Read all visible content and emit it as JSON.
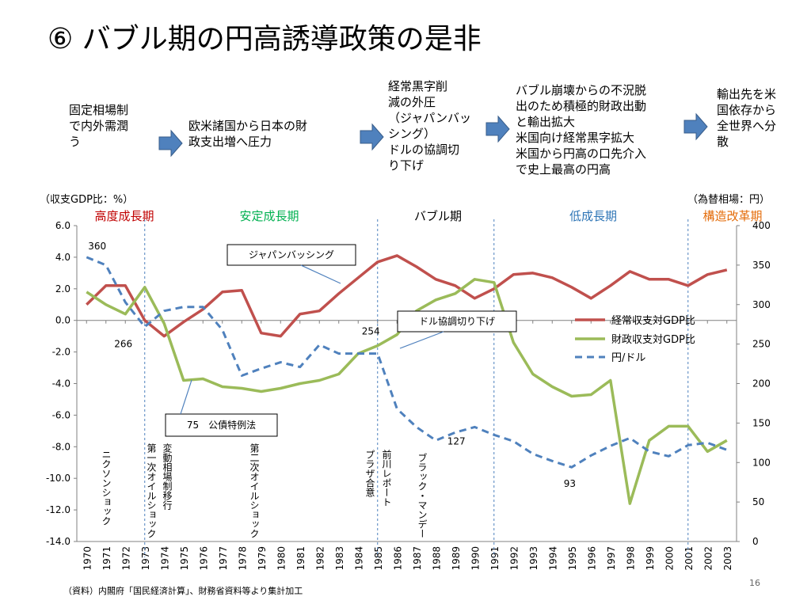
{
  "title": "⑥ バブル期の円高誘導政策の是非",
  "flow": [
    "固定相場制\nで内外需潤\nう",
    "欧米諸国から日本の財\n政支出増へ圧力",
    "経常黒字削\n減の外圧\n（ジャパンバッ\nシング）\nドルの協調切\nり下げ",
    "バブル崩壊からの不況脱\n出のため積極的財政出動\nと輸出拡大\n米国向け経常黒字拡大\n米国から円高の口先介入\nで史上最高の円高",
    "輸出先を米\n国依存から\n全世界へ分\n散"
  ],
  "colors": {
    "current": "#c0504d",
    "fiscal": "#9bbb59",
    "yen": "#4f81bd",
    "era_high": "#c00000",
    "era_stable": "#00b050",
    "era_bubble": "#000000",
    "era_low": "#2e75b6",
    "era_reform": "#e46c0a",
    "arrow": "#4f81bd",
    "arrow_border": "#385d8a",
    "divider": "#4f81bd"
  },
  "chart_data": {
    "type": "line",
    "y_left_label": "（収支GDP比：%）",
    "y_right_label": "（為替相場：円）",
    "y_left_ticks": [
      "6.0",
      "4.0",
      "2.0",
      "0.0",
      "-2.0",
      "-4.0",
      "-6.0",
      "-8.0",
      "-10.0",
      "-12.0",
      "-14.0"
    ],
    "y_right_ticks": [
      "400",
      "350",
      "300",
      "250",
      "200",
      "150",
      "100",
      "50",
      "0"
    ],
    "ylim_left": [
      -14,
      6
    ],
    "ylim_right": [
      0,
      400
    ],
    "x": [
      "1970",
      "1971",
      "1972",
      "1973",
      "1974",
      "1975",
      "1976",
      "1977",
      "1978",
      "1979",
      "1980",
      "1981",
      "1982",
      "1983",
      "1984",
      "1985",
      "1986",
      "1987",
      "1988",
      "1989",
      "1990",
      "1991",
      "1992",
      "1993",
      "1994",
      "1995",
      "1996",
      "1997",
      "1998",
      "1999",
      "2000",
      "2001",
      "2002",
      "2003"
    ],
    "series": [
      {
        "name": "経常収支対GDP比",
        "axis": "left",
        "style": "solid",
        "values": [
          1.0,
          2.2,
          2.2,
          0.0,
          -1.0,
          -0.1,
          0.7,
          1.8,
          1.9,
          -0.8,
          -1.0,
          0.4,
          0.6,
          1.7,
          2.7,
          3.7,
          4.1,
          3.4,
          2.6,
          2.2,
          1.4,
          2.0,
          2.9,
          3.0,
          2.7,
          2.1,
          1.4,
          2.2,
          3.1,
          2.6,
          2.6,
          2.2,
          2.9,
          3.2
        ]
      },
      {
        "name": "財政収支対GDP比",
        "axis": "left",
        "style": "solid",
        "values": [
          1.8,
          1.0,
          0.4,
          2.1,
          -0.2,
          -3.8,
          -3.7,
          -4.2,
          -4.3,
          -4.5,
          -4.3,
          -4.0,
          -3.8,
          -3.4,
          -2.1,
          -1.6,
          -0.9,
          0.6,
          1.3,
          1.7,
          2.6,
          2.4,
          -1.4,
          -3.4,
          -4.2,
          -4.8,
          -4.7,
          -3.8,
          -11.6,
          -7.6,
          -6.7,
          -6.7,
          -8.3,
          -7.6
        ]
      },
      {
        "name": "円/ドル",
        "axis": "right",
        "style": "dashed",
        "values": [
          360,
          350,
          303,
          272,
          292,
          297,
          297,
          268,
          210,
          219,
          227,
          221,
          249,
          238,
          238,
          238,
          168,
          145,
          128,
          138,
          145,
          135,
          127,
          111,
          102,
          94,
          109,
          121,
          131,
          114,
          108,
          122,
          125,
          116
        ]
      }
    ],
    "annotations": [
      {
        "text": "360"
      },
      {
        "text": "266"
      },
      {
        "text": "254"
      },
      {
        "text": "127"
      },
      {
        "text": "93"
      }
    ],
    "eras": [
      {
        "label": "高度成長期"
      },
      {
        "label": "安定成長期"
      },
      {
        "label": "バブル期"
      },
      {
        "label": "低成長期"
      },
      {
        "label": "構造改革期"
      }
    ],
    "callouts": [
      {
        "text": "ジャパンバッシング"
      },
      {
        "text": "ドル協調切り下げ"
      },
      {
        "text": "75　公債特例法"
      }
    ],
    "events": [
      {
        "text": "ニクソンショック"
      },
      {
        "text": "第一次オイルショック"
      },
      {
        "text": "変動相場制移行"
      },
      {
        "text": "第二次オイルショック"
      },
      {
        "text": "プラザ合意"
      },
      {
        "text": "前川レポート"
      },
      {
        "text": "ブラック・マンデー"
      }
    ],
    "legend_position": "right"
  },
  "footnote": "（資料）内閣府「国民経済計算」、財務省資料等より集計加工",
  "page_number": "16"
}
